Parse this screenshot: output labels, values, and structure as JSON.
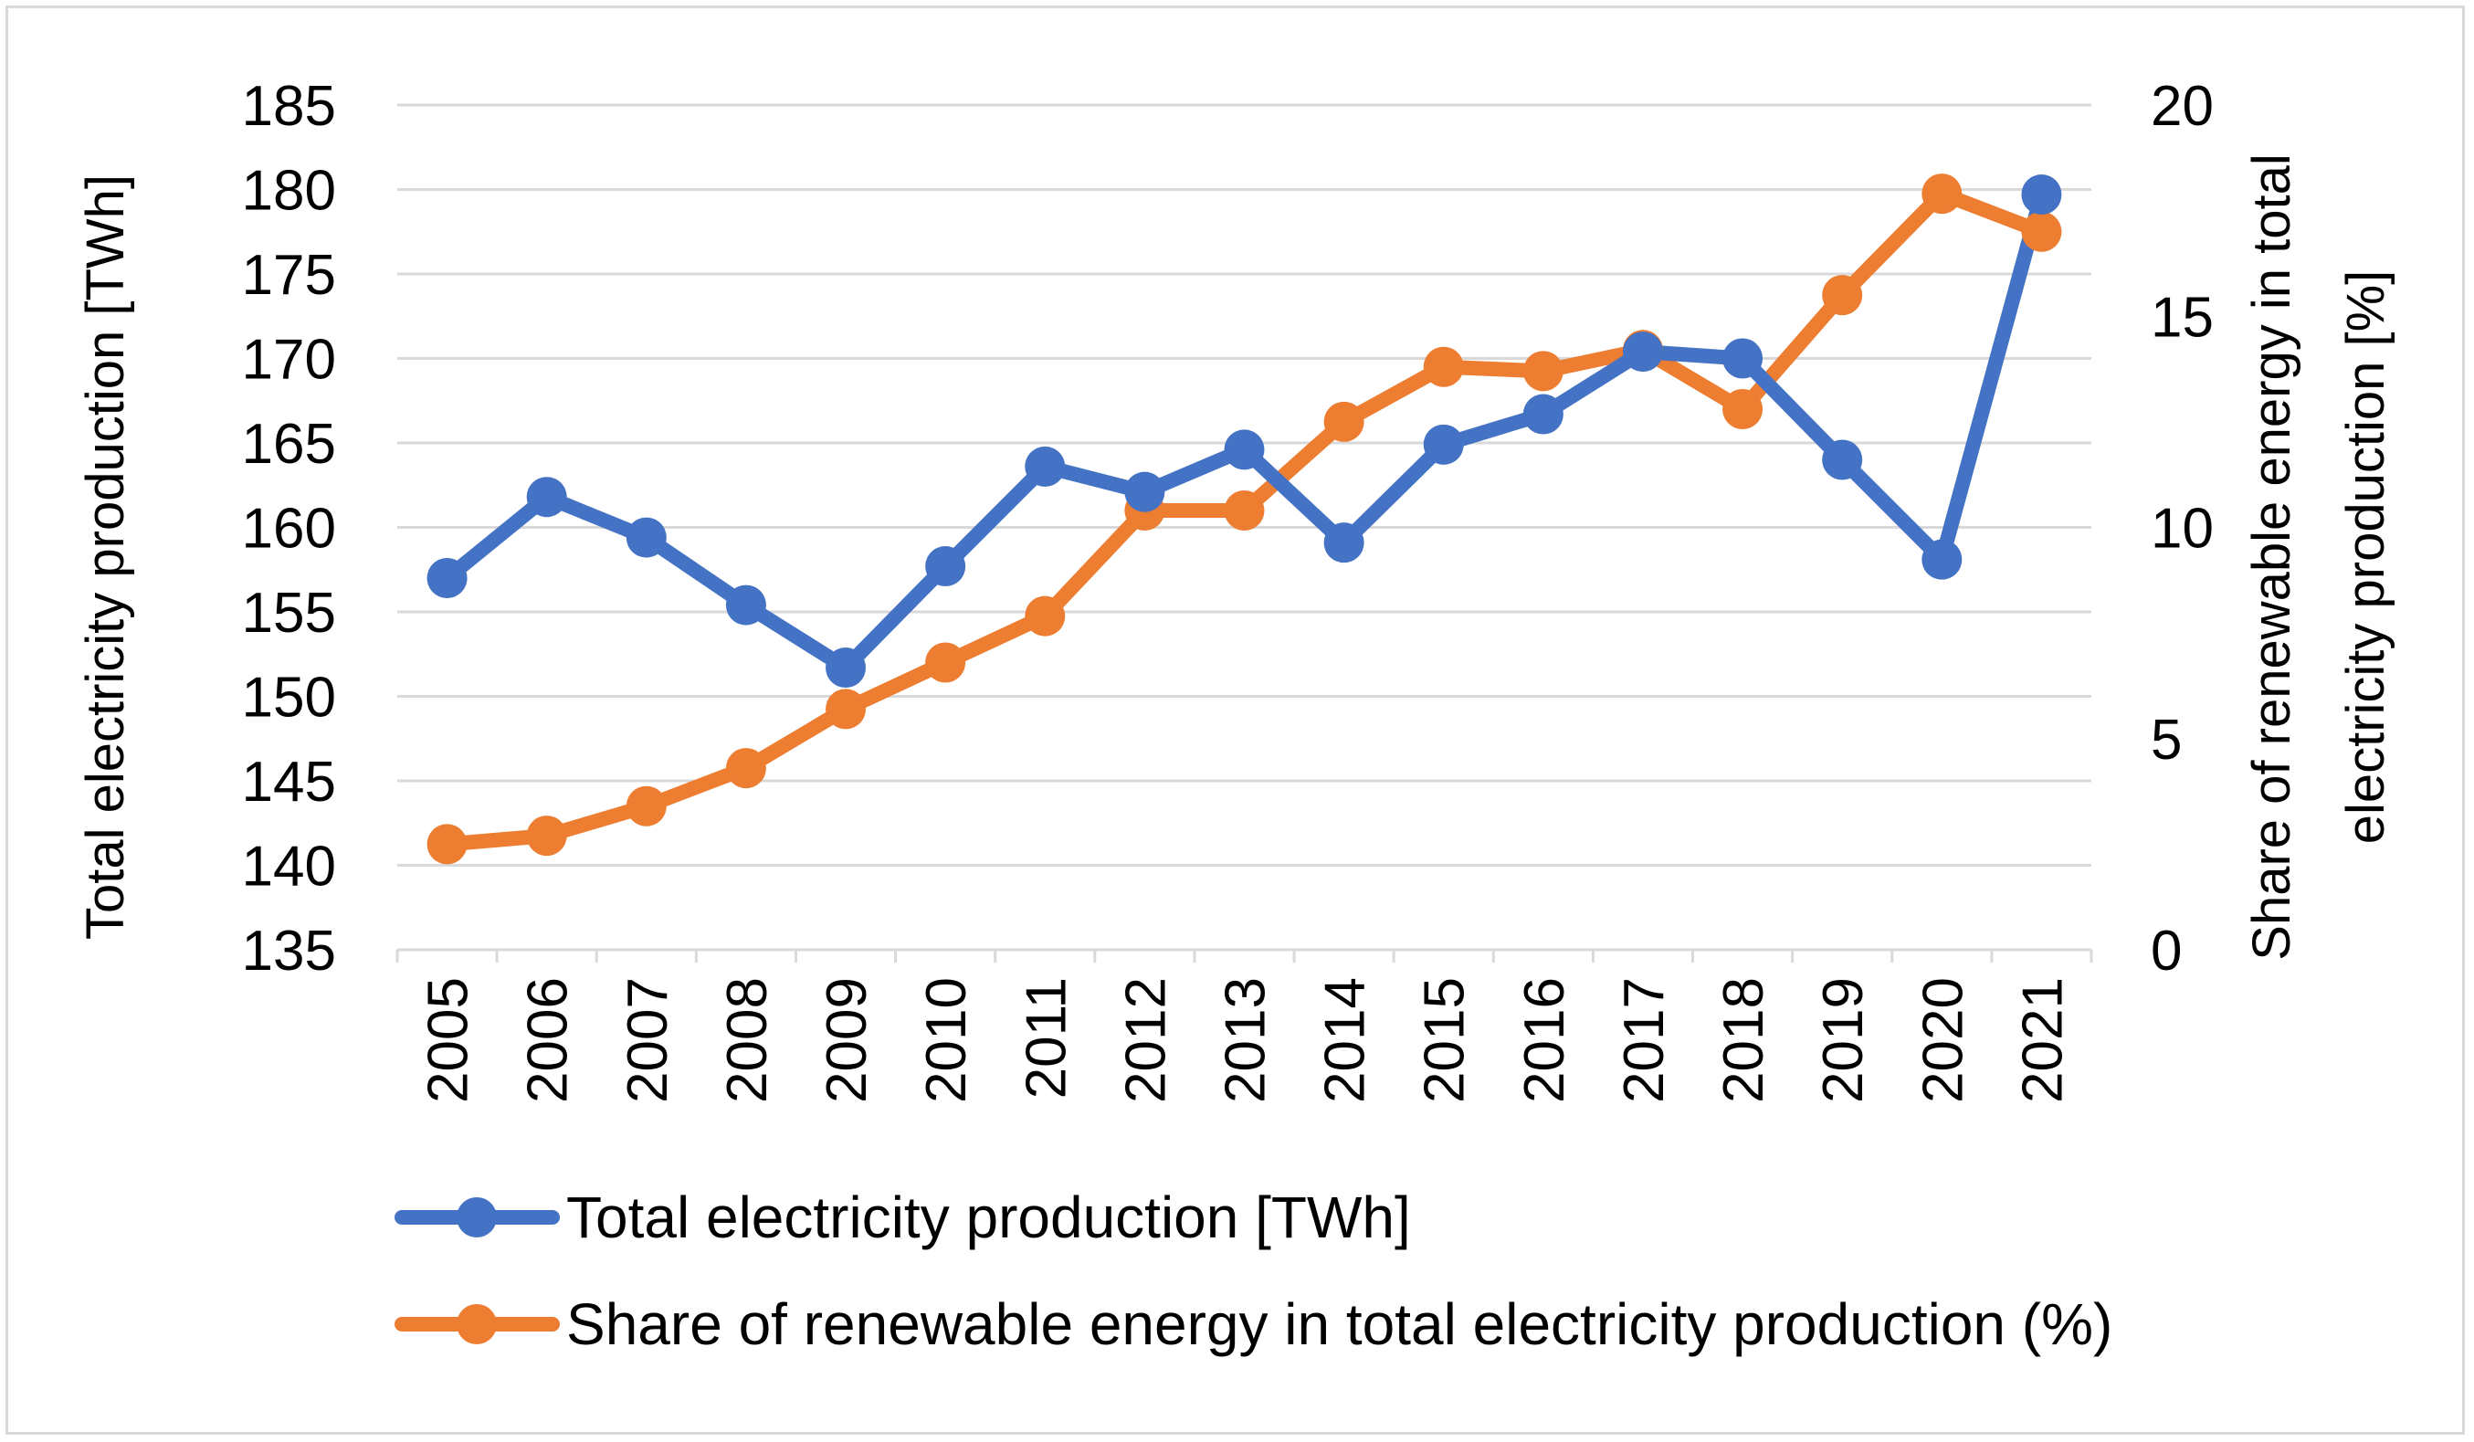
{
  "chart_data": {
    "type": "line",
    "categories": [
      "2005",
      "2006",
      "2007",
      "2008",
      "2009",
      "2010",
      "2011",
      "2012",
      "2013",
      "2014",
      "2015",
      "2016",
      "2017",
      "2018",
      "2019",
      "2020",
      "2021"
    ],
    "series": [
      {
        "name": "Total electricity production [TWh]",
        "axis": "left",
        "color": "#4472c4",
        "values": [
          157.0,
          161.8,
          159.4,
          155.4,
          151.7,
          157.7,
          163.6,
          162.1,
          164.6,
          159.1,
          164.9,
          166.7,
          170.4,
          170.0,
          164.0,
          158.1,
          179.7
        ]
      },
      {
        "name": "Share of renewable energy in total electricity production (%)",
        "axis": "right",
        "color": "#ed7d31",
        "values": [
          2.5,
          2.7,
          3.4,
          4.3,
          5.7,
          6.8,
          7.9,
          10.4,
          10.4,
          12.5,
          13.8,
          13.7,
          14.2,
          12.8,
          15.5,
          17.9,
          17.0
        ]
      }
    ],
    "y_left": {
      "label": "Total electricity production [TWh]",
      "min": 135,
      "max": 185,
      "step": 5
    },
    "y_right": {
      "label": "Share of renewable energy in total electricity production [%]",
      "label_lines": [
        "Share of renewable energy in total",
        "electricity production [%]"
      ],
      "min": 0,
      "max": 20,
      "step": 5
    },
    "xlabel": "",
    "grid": true,
    "legend_position": "bottom"
  }
}
